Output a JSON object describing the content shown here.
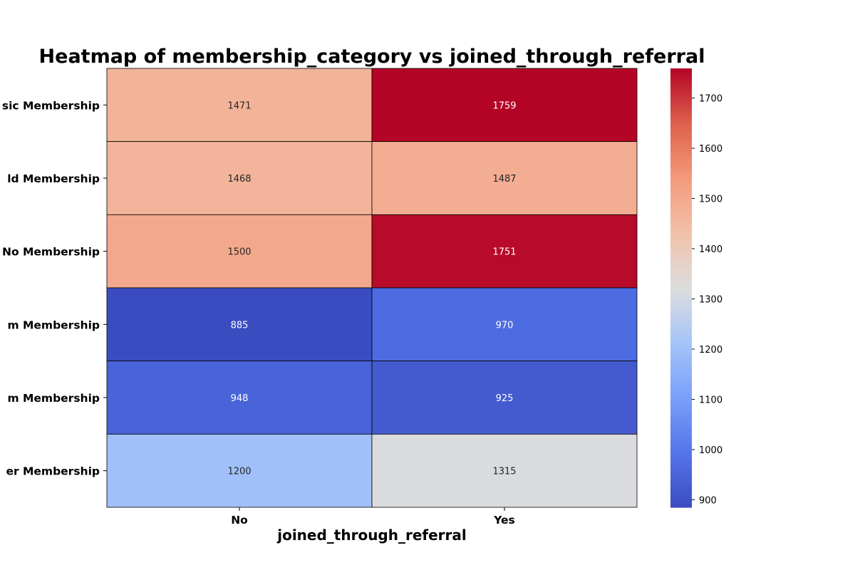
{
  "chart_data": {
    "type": "heatmap",
    "title": "Heatmap of membership_category vs joined_through_referral",
    "xlabel": "joined_through_referral",
    "ylabel": "",
    "columns": [
      "No",
      "Yes"
    ],
    "rows": [
      "sic Membership",
      "ld Membership",
      "No Membership",
      "m Membership",
      "m Membership",
      "er Membership"
    ],
    "values": [
      [
        1471,
        1759
      ],
      [
        1468,
        1487
      ],
      [
        1500,
        1751
      ],
      [
        885,
        970
      ],
      [
        948,
        925
      ],
      [
        1200,
        1315
      ]
    ],
    "colormap": "coolwarm",
    "vmin": 885,
    "vmax": 1759,
    "colorbar_ticks": [
      900,
      1000,
      1100,
      1200,
      1300,
      1400,
      1500,
      1600,
      1700
    ],
    "annotate": true,
    "cell_border_color": "#000000"
  }
}
